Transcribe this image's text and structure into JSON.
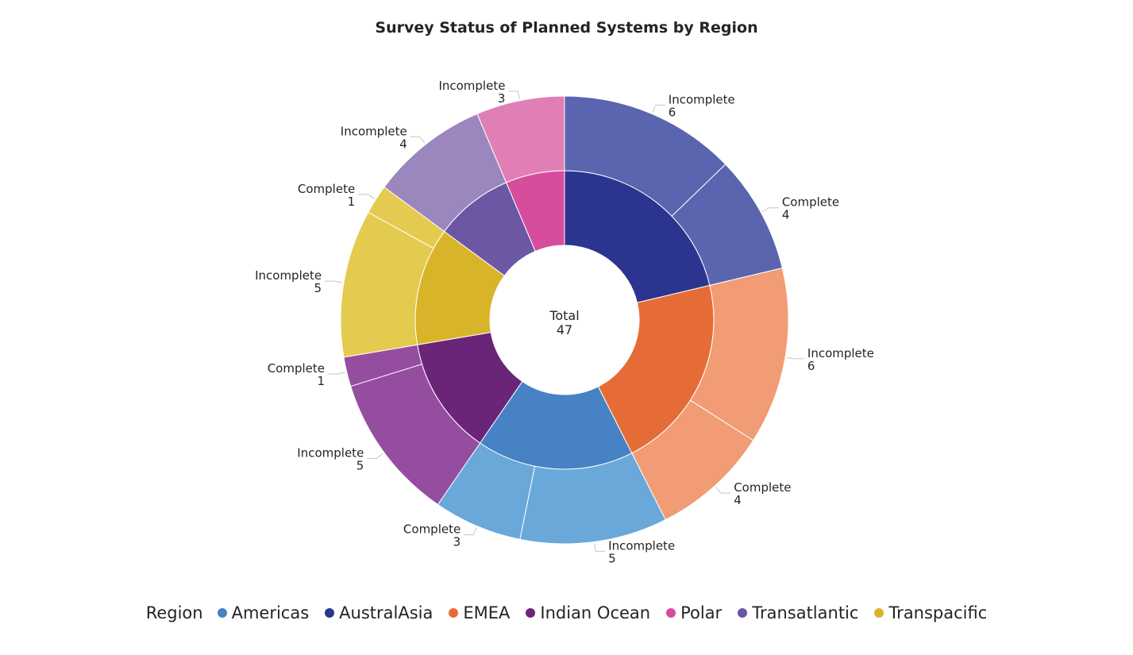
{
  "chart_data": {
    "type": "pie",
    "subtype": "sunburst",
    "title": "Survey Status of Planned Systems by Region",
    "center": {
      "label": "Total",
      "value": 47
    },
    "legend": {
      "title": "Region",
      "placement": "bottom"
    },
    "regions": [
      {
        "name": "AustralAsia",
        "color": "#2B3590",
        "outer_color": "#5B64AF",
        "children": [
          {
            "name": "Incomplete",
            "value": 6
          },
          {
            "name": "Complete",
            "value": 4
          }
        ]
      },
      {
        "name": "EMEA",
        "color": "#E66C37",
        "outer_color": "#F19C75",
        "children": [
          {
            "name": "Incomplete",
            "value": 6
          },
          {
            "name": "Complete",
            "value": 4
          }
        ]
      },
      {
        "name": "Americas",
        "color": "#4682C4",
        "outer_color": "#6BA8DA",
        "children": [
          {
            "name": "Incomplete",
            "value": 5
          },
          {
            "name": "Complete",
            "value": 3
          }
        ]
      },
      {
        "name": "Indian Ocean",
        "color": "#6A2579",
        "outer_color": "#954D9F",
        "children": [
          {
            "name": "Incomplete",
            "value": 5
          },
          {
            "name": "Complete",
            "value": 1
          }
        ]
      },
      {
        "name": "Transpacific",
        "color": "#D8B429",
        "outer_color": "#E4CA4F",
        "children": [
          {
            "name": "Incomplete",
            "value": 5
          },
          {
            "name": "Complete",
            "value": 1
          }
        ]
      },
      {
        "name": "Transatlantic",
        "color": "#6B57A4",
        "outer_color": "#9C86BE",
        "children": [
          {
            "name": "Incomplete",
            "value": 4
          }
        ]
      },
      {
        "name": "Polar",
        "color": "#D64D9E",
        "outer_color": "#E07FB6",
        "children": [
          {
            "name": "Incomplete",
            "value": 3
          }
        ]
      }
    ]
  },
  "legend_items": [
    {
      "name": "Americas",
      "color": "#4682C4"
    },
    {
      "name": "AustralAsia",
      "color": "#2B3590"
    },
    {
      "name": "EMEA",
      "color": "#E66C37"
    },
    {
      "name": "Indian Ocean",
      "color": "#6A2579"
    },
    {
      "name": "Polar",
      "color": "#D64D9E"
    },
    {
      "name": "Transatlantic",
      "color": "#6B57A4"
    },
    {
      "name": "Transpacific",
      "color": "#D8B429"
    }
  ]
}
